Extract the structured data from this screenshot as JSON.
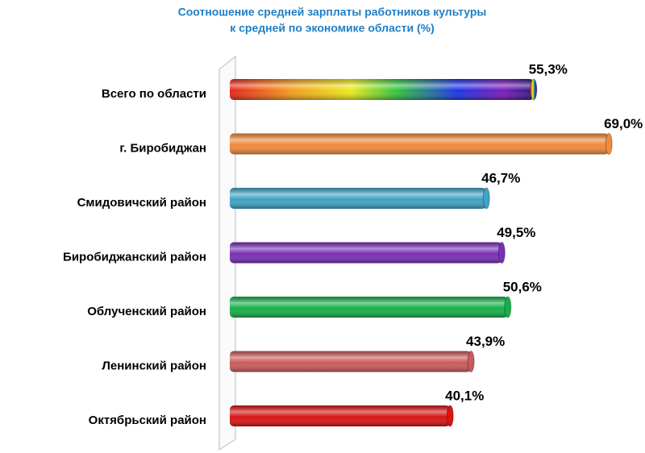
{
  "chart_data": {
    "type": "bar",
    "orientation": "horizontal",
    "title": [
      "Соотношение средней зарплаты работников культуры",
      "к средней по экономике области (%)"
    ],
    "categories": [
      "Всего по области",
      "г. Биробиджан",
      "Смидовичский  район",
      "Биробиджанский район",
      "Облученский район",
      "Ленинский район",
      "Октябрьский район"
    ],
    "values": [
      55.3,
      69.0,
      46.7,
      49.5,
      50.6,
      43.9,
      40.1
    ],
    "value_labels": [
      "55,3%",
      "69,0%",
      "46,7%",
      "49,5%",
      "50,6%",
      "43,9%",
      "40,1%"
    ],
    "colors": [
      "rainbow",
      "#f08a3c",
      "#3fa3c4",
      "#7a2fb8",
      "#16b04a",
      "#c95b5b",
      "#d81414"
    ],
    "xlim": [
      0,
      70
    ]
  }
}
